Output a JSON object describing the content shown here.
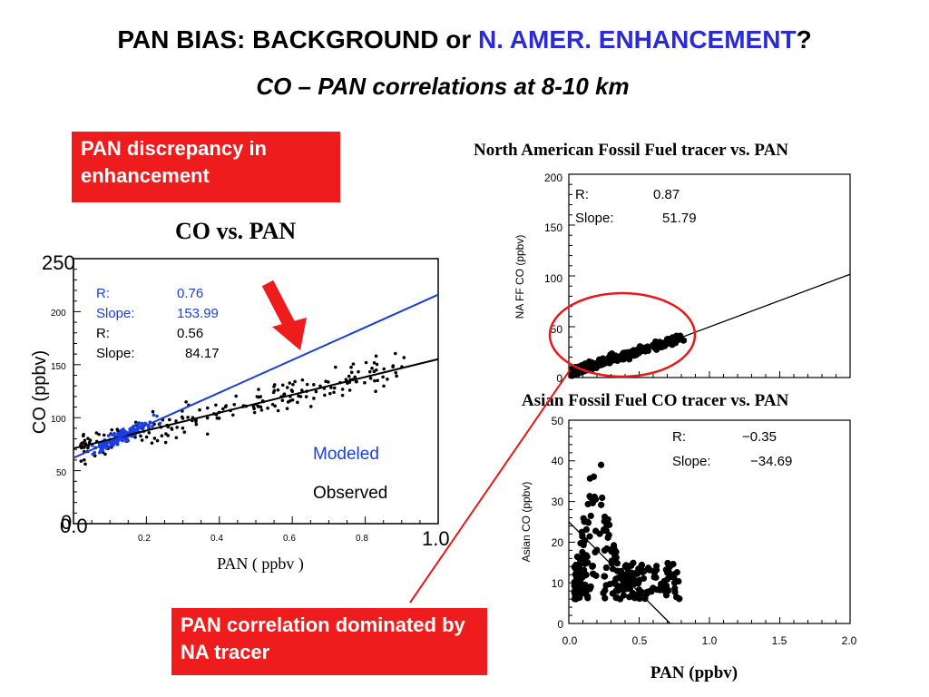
{
  "slide": {
    "title_prefix": "PAN BIAS: BACKGROUND or ",
    "title_highlight": "N. AMER. ENHANCEMENT",
    "title_suffix": "?",
    "subtitle": "CO – PAN correlations at 8-10 km",
    "callout_top": "PAN discrepancy in enhancement",
    "callout_bottom": "PAN correlation dominated by NA tracer",
    "colors": {
      "accent_blue": "#2b2bd6",
      "callout_red": "#ee1c1c",
      "modeled": "#1a3fe0",
      "observed": "#000000"
    }
  },
  "chart_data": [
    {
      "type": "scatter",
      "title": "CO vs. PAN",
      "xlabel": "PAN ( ppbv )",
      "ylabel": "CO (ppbv)",
      "xlim": [
        0,
        1.0
      ],
      "ylim": [
        0,
        250
      ],
      "x_ticks": [
        "0.0",
        "0.2",
        "0.4",
        "0.6",
        "0.8",
        "1.0"
      ],
      "y_ticks": [
        "0",
        "50",
        "100",
        "150",
        "200",
        "250"
      ],
      "series": [
        {
          "name": "Modeled",
          "color": "#1a3fe0",
          "R": "0.76",
          "slope": "153.99",
          "fit": {
            "slope": 153.99,
            "intercept": 62
          }
        },
        {
          "name": "Observed",
          "color": "#000000",
          "R": "0.56",
          "slope": "84.17",
          "fit": {
            "slope": 84.17,
            "intercept": 71
          }
        }
      ],
      "stats_labels": {
        "r": "R:",
        "slope": "Slope:"
      }
    },
    {
      "type": "scatter",
      "title": "North American Fossil Fuel tracer vs. PAN",
      "ylabel": "NA FF CO (ppbv)",
      "xlim": [
        0,
        2.0
      ],
      "ylim": [
        0,
        200
      ],
      "y_ticks": [
        "0",
        "50",
        "100",
        "150",
        "200"
      ],
      "stats": {
        "r_label": "R:",
        "r": "0.87",
        "slope_label": "Slope:",
        "slope": "51.79"
      },
      "fit": {
        "slope": 51.79,
        "intercept": -2
      }
    },
    {
      "type": "scatter",
      "title": "Asian Fossil Fuel CO tracer vs. PAN",
      "xlabel": "PAN (ppbv)",
      "ylabel": "Asian CO (ppbv)",
      "xlim": [
        0,
        2.0
      ],
      "ylim": [
        0,
        50
      ],
      "x_ticks": [
        "0.0",
        "0.5",
        "1.0",
        "1.5",
        "2.0"
      ],
      "y_ticks": [
        "0",
        "10",
        "20",
        "30",
        "40",
        "50"
      ],
      "stats": {
        "r_label": "R:",
        "r": "−0.35",
        "slope_label": "Slope:",
        "slope": "−34.69"
      },
      "fit": {
        "slope": -34.69,
        "intercept": 25
      }
    }
  ]
}
